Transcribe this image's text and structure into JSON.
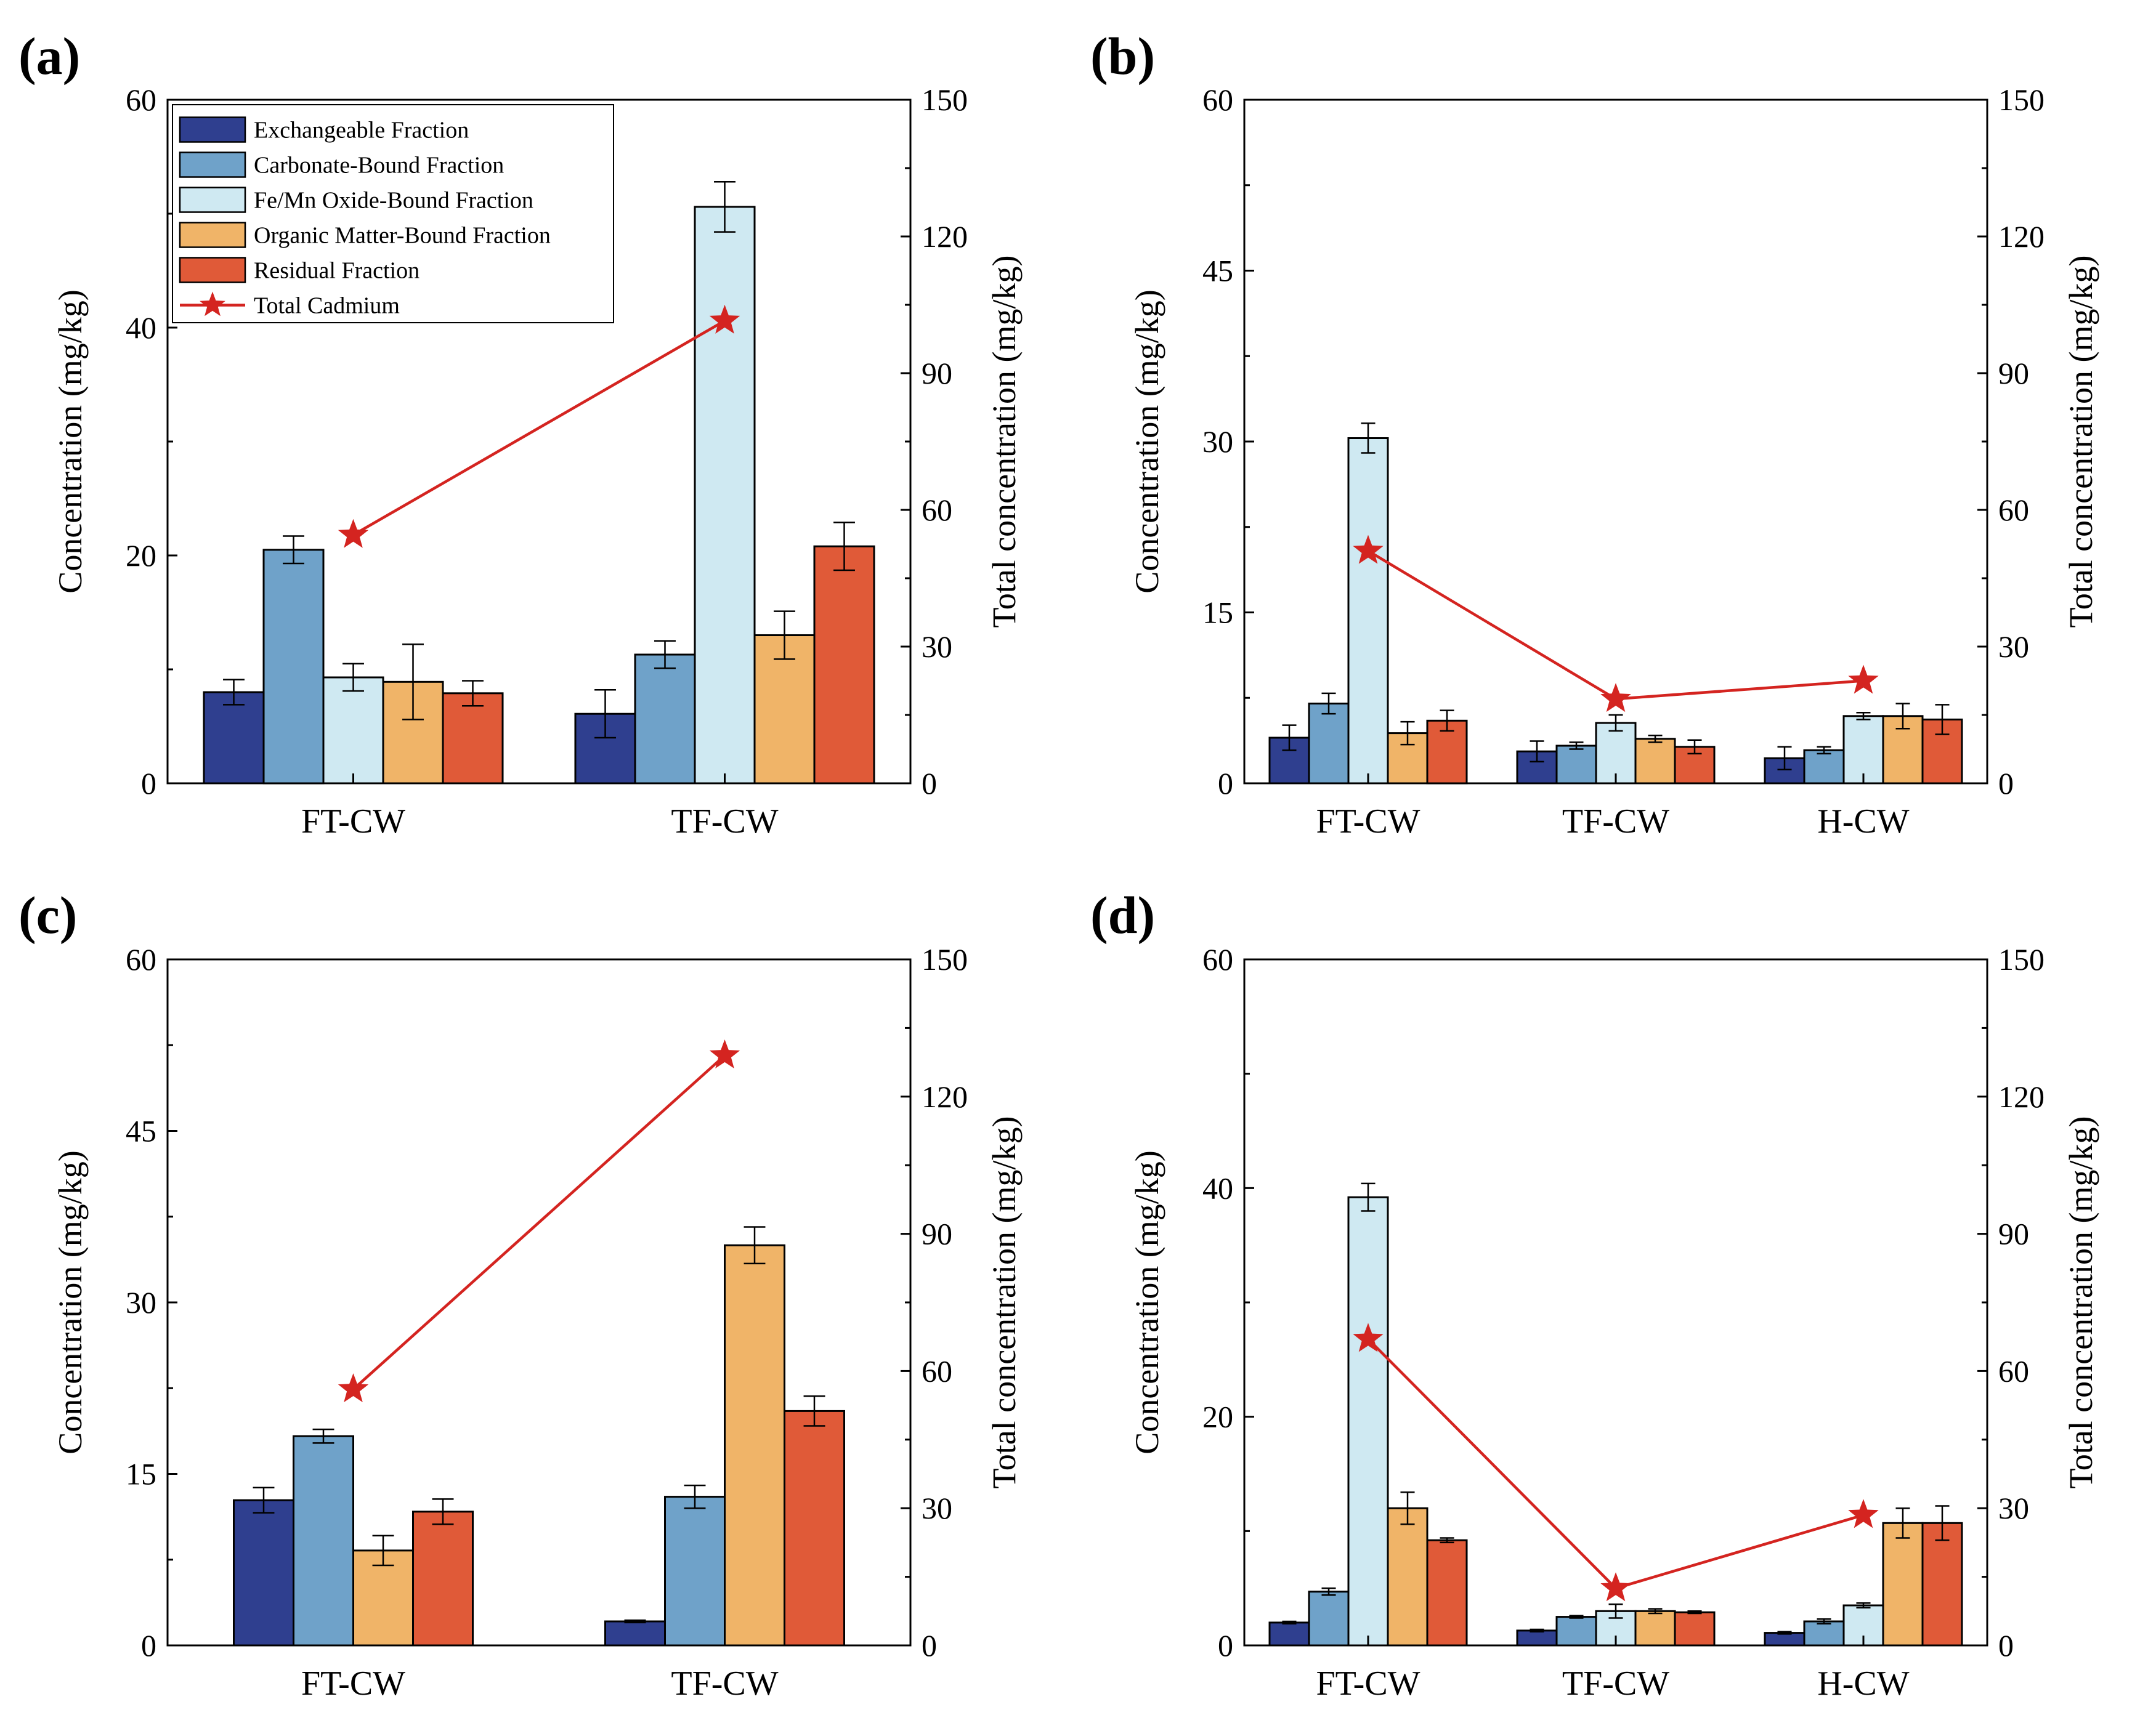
{
  "figure": {
    "background": "#ffffff"
  },
  "colors": {
    "series": [
      "#2f3f8f",
      "#6fa2c9",
      "#cfe9f2",
      "#f0b468",
      "#e05a38"
    ],
    "total": "#d42420"
  },
  "legend": {
    "entries": [
      "Exchangeable Fraction",
      "Carbonate-Bound Fraction",
      "Fe/Mn Oxide-Bound Fraction",
      "Organic Matter-Bound Fraction",
      "Residual Fraction",
      "Total Cadmium"
    ]
  },
  "chart_data": [
    {
      "panel": "(a)",
      "type": "bar",
      "categories": [
        "FT-CW",
        "TF-CW"
      ],
      "ylabel": "Concentration (mg/kg)",
      "ylabel_right": "Total concentration (mg/kg)",
      "ylim": [
        0,
        60
      ],
      "yticks": [
        0,
        20,
        40,
        60
      ],
      "ylim_right": [
        0,
        150
      ],
      "yticks_right": [
        0,
        30,
        60,
        90,
        120,
        150
      ],
      "series": [
        {
          "name": "Exchangeable Fraction",
          "values": [
            8.0,
            6.1
          ],
          "errors": [
            1.1,
            2.1
          ]
        },
        {
          "name": "Carbonate-Bound Fraction",
          "values": [
            20.5,
            11.3
          ],
          "errors": [
            1.2,
            1.2
          ]
        },
        {
          "name": "Fe/Mn Oxide-Bound Fraction",
          "values": [
            9.3,
            50.6
          ],
          "errors": [
            1.2,
            2.2
          ]
        },
        {
          "name": "Organic Matter-Bound Fraction",
          "values": [
            8.9,
            13.0
          ],
          "errors": [
            3.3,
            2.1
          ]
        },
        {
          "name": "Residual Fraction",
          "values": [
            7.9,
            20.8
          ],
          "errors": [
            1.1,
            2.1
          ]
        }
      ],
      "total": {
        "name": "Total Cadmium",
        "values": [
          54.5,
          101.5
        ]
      }
    },
    {
      "panel": "(b)",
      "type": "bar",
      "categories": [
        "FT-CW",
        "TF-CW",
        "H-CW"
      ],
      "ylabel": "Concentration (mg/kg)",
      "ylabel_right": "Total concentration (mg/kg)",
      "ylim": [
        0,
        60
      ],
      "yticks": [
        0,
        15,
        30,
        45,
        60
      ],
      "ylim_right": [
        0,
        150
      ],
      "yticks_right": [
        0,
        30,
        60,
        90,
        120,
        150
      ],
      "series": [
        {
          "name": "Exchangeable Fraction",
          "values": [
            4.0,
            2.8,
            2.2
          ],
          "errors": [
            1.1,
            0.9,
            1.0
          ]
        },
        {
          "name": "Carbonate-Bound Fraction",
          "values": [
            7.0,
            3.3,
            2.9
          ],
          "errors": [
            0.9,
            0.3,
            0.3
          ]
        },
        {
          "name": "Fe/Mn Oxide-Bound Fraction",
          "values": [
            30.3,
            5.3,
            5.9
          ],
          "errors": [
            1.3,
            0.7,
            0.3
          ]
        },
        {
          "name": "Organic Matter-Bound Fraction",
          "values": [
            4.4,
            3.9,
            5.9
          ],
          "errors": [
            1.0,
            0.3,
            1.1
          ]
        },
        {
          "name": "Residual Fraction",
          "values": [
            5.5,
            3.2,
            5.6
          ],
          "errors": [
            0.9,
            0.6,
            1.3
          ]
        }
      ],
      "total": {
        "name": "Total Cadmium",
        "values": [
          51.0,
          18.5,
          22.5
        ]
      }
    },
    {
      "panel": "(c)",
      "type": "bar",
      "categories": [
        "FT-CW",
        "TF-CW"
      ],
      "ylabel": "Concentration (mg/kg)",
      "ylabel_right": "Total concentration (mg/kg)",
      "ylim": [
        0,
        60
      ],
      "yticks": [
        0,
        15,
        30,
        45,
        60
      ],
      "ylim_right": [
        0,
        150
      ],
      "yticks_right": [
        0,
        30,
        60,
        90,
        120,
        150
      ],
      "series": [
        {
          "name": "Exchangeable Fraction",
          "values": [
            12.7,
            2.1
          ],
          "errors": [
            1.1,
            0.1
          ]
        },
        {
          "name": "Carbonate-Bound Fraction",
          "values": [
            18.3,
            13.0
          ],
          "errors": [
            0.6,
            1.0
          ]
        },
        {
          "name": "Organic Matter-Bound Fraction",
          "values": [
            8.3,
            35.0
          ],
          "errors": [
            1.3,
            1.6
          ]
        },
        {
          "name": "Residual Fraction",
          "values": [
            11.7,
            20.5
          ],
          "errors": [
            1.1,
            1.3
          ]
        }
      ],
      "total": {
        "name": "Total Cadmium",
        "values": [
          56.0,
          129.0
        ]
      }
    },
    {
      "panel": "(d)",
      "type": "bar",
      "categories": [
        "FT-CW",
        "TF-CW",
        "H-CW"
      ],
      "ylabel": "Concentration (mg/kg)",
      "ylabel_right": "Total concentration (mg/kg)",
      "ylim": [
        0,
        60
      ],
      "yticks": [
        0,
        20,
        40,
        60
      ],
      "ylim_right": [
        0,
        150
      ],
      "yticks_right": [
        0,
        30,
        60,
        90,
        120,
        150
      ],
      "series": [
        {
          "name": "Exchangeable Fraction",
          "values": [
            2.0,
            1.3,
            1.1
          ],
          "errors": [
            0.1,
            0.1,
            0.1
          ]
        },
        {
          "name": "Carbonate-Bound Fraction",
          "values": [
            4.7,
            2.5,
            2.1
          ],
          "errors": [
            0.3,
            0.1,
            0.2
          ]
        },
        {
          "name": "Fe/Mn Oxide-Bound Fraction",
          "values": [
            39.2,
            3.0,
            3.5
          ],
          "errors": [
            1.2,
            0.6,
            0.2
          ]
        },
        {
          "name": "Organic Matter-Bound Fraction",
          "values": [
            12.0,
            3.0,
            10.7
          ],
          "errors": [
            1.4,
            0.2,
            1.3
          ]
        },
        {
          "name": "Residual Fraction",
          "values": [
            9.2,
            2.9,
            10.7
          ],
          "errors": [
            0.2,
            0.1,
            1.5
          ]
        }
      ],
      "total": {
        "name": "Total Cadmium",
        "values": [
          67.0,
          12.5,
          28.5
        ]
      }
    }
  ]
}
